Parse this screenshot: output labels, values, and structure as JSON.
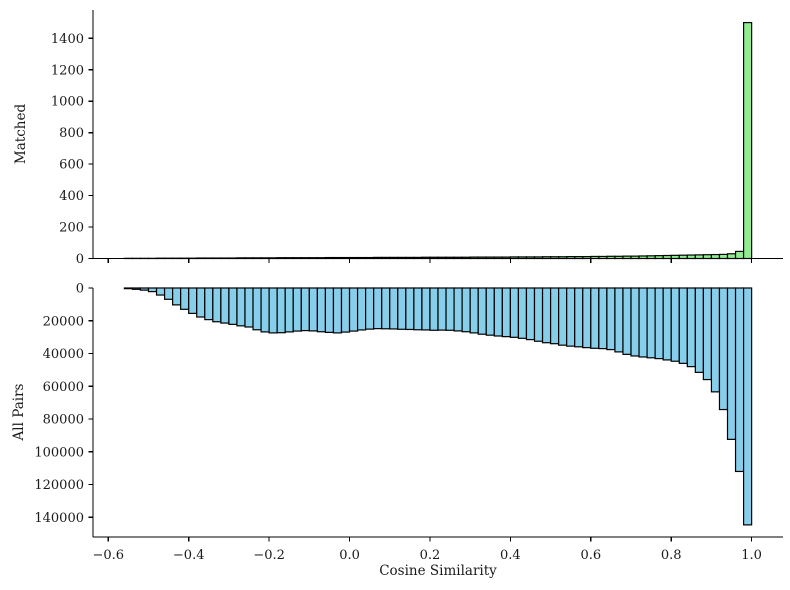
{
  "figure": {
    "background": "#ffffff"
  },
  "chart_data": [
    {
      "type": "histogram",
      "panel": "top",
      "orientation": "upward",
      "ylabel": "Matched",
      "bar_color": "#90ee90",
      "edge_color": "#000000",
      "bin_start": -0.56,
      "bin_width": 0.02,
      "values": [
        1,
        1,
        1,
        1,
        2,
        2,
        2,
        2,
        2,
        3,
        3,
        3,
        3,
        3,
        4,
        4,
        4,
        4,
        4,
        5,
        5,
        5,
        5,
        5,
        5,
        6,
        6,
        6,
        6,
        6,
        6,
        7,
        7,
        7,
        7,
        7,
        7,
        8,
        8,
        8,
        8,
        8,
        8,
        9,
        9,
        9,
        9,
        9,
        10,
        10,
        10,
        10,
        11,
        11,
        11,
        12,
        12,
        12,
        13,
        13,
        14,
        14,
        15,
        15,
        16,
        17,
        18,
        19,
        20,
        21,
        22,
        23,
        24,
        25,
        26,
        30,
        45,
        1500
      ],
      "peak_bin": [
        0.98,
        1.0
      ],
      "peak_value": 1500,
      "xlim": [
        -0.638,
        1.078
      ],
      "ylim": [
        0,
        1580
      ],
      "grid": false,
      "xticks": [
        -0.6,
        -0.4,
        -0.2,
        0.0,
        0.2,
        0.4,
        0.6,
        0.8,
        1.0
      ],
      "xtick_labels": [],
      "yticks": [
        0,
        200,
        400,
        600,
        800,
        1000,
        1200,
        1400
      ],
      "ytick_labels": [
        "0",
        "200",
        "400",
        "600",
        "800",
        "1000",
        "1200",
        "1400"
      ]
    },
    {
      "type": "histogram",
      "panel": "bottom",
      "orientation": "inverted",
      "ylabel": "All Pairs",
      "xlabel": "Cosine Similarity",
      "bar_color": "#87ceeb",
      "edge_color": "#000000",
      "bin_start": -0.56,
      "bin_width": 0.02,
      "values": [
        400,
        800,
        1300,
        2200,
        4300,
        6900,
        10300,
        13000,
        15500,
        17700,
        19300,
        20600,
        21400,
        22200,
        23100,
        23800,
        25500,
        26800,
        27400,
        27300,
        26800,
        26300,
        26000,
        26200,
        26700,
        27100,
        27400,
        26900,
        26300,
        25600,
        25100,
        24800,
        24900,
        25000,
        25200,
        25300,
        25500,
        25600,
        25800,
        25700,
        25800,
        26200,
        26700,
        27400,
        28200,
        28800,
        29300,
        29700,
        30100,
        30700,
        31500,
        32500,
        33400,
        34000,
        34900,
        35500,
        35900,
        36400,
        36800,
        37000,
        37600,
        39000,
        40500,
        41500,
        42100,
        42600,
        43100,
        43900,
        44700,
        46000,
        48000,
        51500,
        55900,
        63400,
        74200,
        92400,
        112000,
        144600
      ],
      "peak_bin": [
        0.98,
        1.0
      ],
      "peak_value": 144600,
      "xlim": [
        -0.638,
        1.078
      ],
      "ylim": [
        0,
        152000
      ],
      "grid": false,
      "xticks": [
        -0.6,
        -0.4,
        -0.2,
        0.0,
        0.2,
        0.4,
        0.6,
        0.8,
        1.0
      ],
      "xtick_labels": [
        "−0.6",
        "−0.4",
        "−0.2",
        "0.0",
        "0.2",
        "0.4",
        "0.6",
        "0.8",
        "1.0"
      ],
      "yticks": [
        0,
        20000,
        40000,
        60000,
        80000,
        100000,
        120000,
        140000
      ],
      "ytick_labels": [
        "0",
        "20000",
        "40000",
        "60000",
        "80000",
        "100000",
        "120000",
        "140000"
      ]
    }
  ]
}
